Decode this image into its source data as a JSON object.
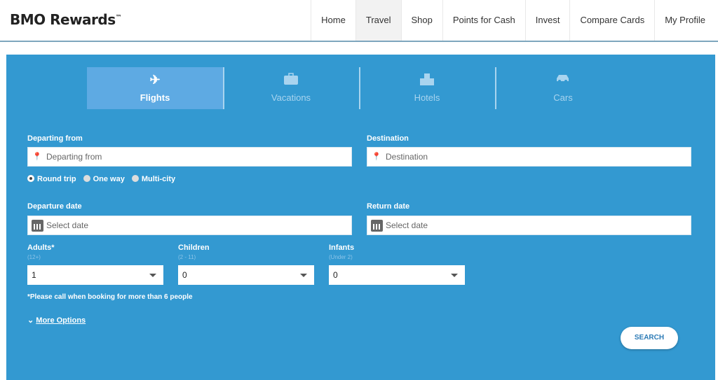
{
  "header": {
    "logo": "BMO Rewards",
    "logo_mark": "™",
    "nav": [
      {
        "label": "Home"
      },
      {
        "label": "Travel",
        "active": true
      },
      {
        "label": "Shop"
      },
      {
        "label": "Points for Cash"
      },
      {
        "label": "Invest"
      },
      {
        "label": "Compare Cards"
      },
      {
        "label": "My Profile"
      }
    ]
  },
  "tabs": [
    {
      "label": "Flights",
      "icon": "airplane-icon",
      "active": true
    },
    {
      "label": "Vacations",
      "icon": "suitcase-icon"
    },
    {
      "label": "Hotels",
      "icon": "hotel-icon"
    },
    {
      "label": "Cars",
      "icon": "car-icon"
    }
  ],
  "form": {
    "departing": {
      "label": "Departing from",
      "placeholder": "Departing from"
    },
    "destination": {
      "label": "Destination",
      "placeholder": "Destination"
    },
    "trip_types": [
      {
        "label": "Round trip",
        "selected": true
      },
      {
        "label": "One way"
      },
      {
        "label": "Multi-city"
      }
    ],
    "departure_date": {
      "label": "Departure date",
      "placeholder": "Select date"
    },
    "return_date": {
      "label": "Return date",
      "placeholder": "Select date"
    },
    "adults": {
      "label": "Adults*",
      "sub": "(12+)",
      "value": "1"
    },
    "children": {
      "label": "Children",
      "sub": "(2 - 11)",
      "value": "0"
    },
    "infants": {
      "label": "Infants",
      "sub": "(Under 2)",
      "value": "0"
    },
    "note": "*Please call when booking for more than 6 people",
    "more_options": "More Options",
    "search": "SEARCH"
  },
  "colors": {
    "panel": "#3399d1",
    "active_tab": "#5eaae3",
    "search_text": "#2c7bb6"
  }
}
